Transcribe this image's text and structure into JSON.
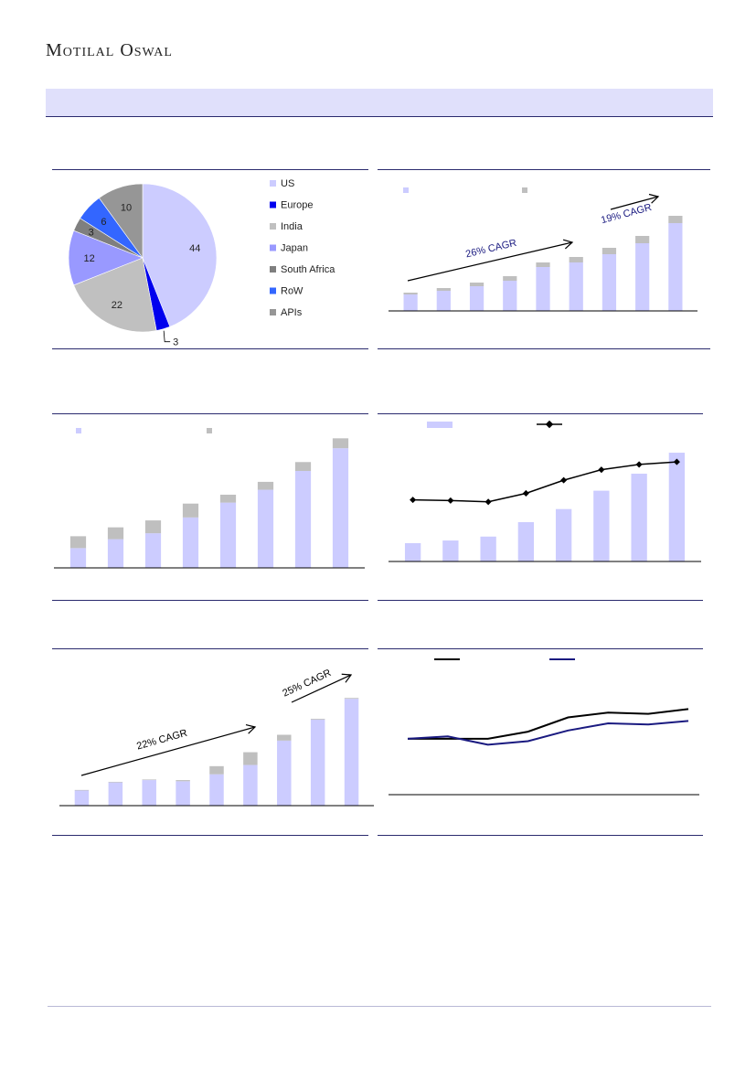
{
  "brand": {
    "name": "Motilal Oswal"
  },
  "colors": {
    "rule": "#2b2b6e",
    "bar_main": "#ccccff",
    "bar_top": "#bfbfbf",
    "line_black": "#000000",
    "line_navy": "#1a1a80",
    "cagr_text": "#1a1a80"
  },
  "chart_data": [
    {
      "id": "chart1",
      "type": "pie",
      "categories": [
        "US",
        "Europe",
        "India",
        "Japan",
        "South Africa",
        "RoW",
        "APIs"
      ],
      "values": [
        44,
        3,
        22,
        12,
        3,
        6,
        10
      ],
      "colors": [
        "#ccccff",
        "#0000ee",
        "#c0c0c0",
        "#9999ff",
        "#7f7f7f",
        "#3366ff",
        "#969696"
      ],
      "legend": "right"
    },
    {
      "id": "chart2",
      "type": "bar",
      "stacked": true,
      "series": [
        {
          "name": "",
          "values": [
            18,
            22,
            27,
            33,
            48,
            53,
            62,
            74,
            96
          ]
        },
        {
          "name": "",
          "values": [
            2,
            3,
            4,
            5,
            5,
            6,
            7,
            8,
            8
          ]
        }
      ],
      "ylim": [
        0,
        110
      ],
      "annotations": [
        {
          "text": "26% CAGR",
          "from": 0,
          "to": 5.2
        },
        {
          "text": "19% CAGR",
          "from": 6.4,
          "to": 8.3
        }
      ]
    },
    {
      "id": "chart3",
      "type": "bar",
      "stacked": true,
      "series": [
        {
          "name": "",
          "values": [
            20,
            29,
            35,
            51,
            66,
            79,
            98,
            121
          ]
        },
        {
          "name": "",
          "values": [
            12,
            12,
            13,
            14,
            8,
            8,
            9,
            10
          ]
        }
      ],
      "ylim": [
        0,
        135
      ]
    },
    {
      "id": "chart4",
      "type": "bar",
      "series": [
        {
          "name": "",
          "type": "bar",
          "values": [
            14,
            16,
            19,
            30,
            40,
            54,
            67,
            83
          ]
        },
        {
          "name": "",
          "type": "line",
          "values": [
            47,
            46.5,
            45.5,
            52,
            62,
            70,
            74,
            76
          ]
        }
      ],
      "ylim": [
        0,
        90
      ]
    },
    {
      "id": "chart5",
      "type": "bar",
      "stacked": true,
      "series": [
        {
          "name": "",
          "values": [
            13,
            20,
            22,
            21,
            27,
            35,
            56,
            74,
            92
          ]
        },
        {
          "name": "",
          "values": [
            0.5,
            0.5,
            0.5,
            1,
            7,
            11,
            5,
            0.7,
            0.7
          ]
        }
      ],
      "ylim": [
        0,
        100
      ],
      "annotations": [
        {
          "text": "22% CAGR",
          "from": 0,
          "to": 5.2
        },
        {
          "text": "25% CAGR",
          "from": 6.2,
          "to": 8
        }
      ]
    },
    {
      "id": "chart6",
      "type": "line",
      "series": [
        {
          "name": "",
          "values": [
            47,
            47,
            47,
            53,
            65,
            69,
            68,
            72
          ]
        },
        {
          "name": "",
          "values": [
            47,
            49,
            42,
            45,
            54,
            60,
            59,
            62
          ]
        }
      ],
      "ylim": [
        0,
        100
      ]
    }
  ]
}
